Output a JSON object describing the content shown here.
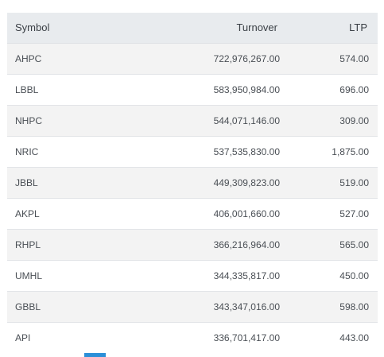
{
  "table": {
    "headers": {
      "symbol": "Symbol",
      "turnover": "Turnover",
      "ltp": "LTP"
    },
    "rows": [
      {
        "symbol": "AHPC",
        "turnover": "722,976,267.00",
        "ltp": "574.00"
      },
      {
        "symbol": "LBBL",
        "turnover": "583,950,984.00",
        "ltp": "696.00"
      },
      {
        "symbol": "NHPC",
        "turnover": "544,071,146.00",
        "ltp": "309.00"
      },
      {
        "symbol": "NRIC",
        "turnover": "537,535,830.00",
        "ltp": "1,875.00"
      },
      {
        "symbol": "JBBL",
        "turnover": "449,309,823.00",
        "ltp": "519.00"
      },
      {
        "symbol": "AKPL",
        "turnover": "406,001,660.00",
        "ltp": "527.00"
      },
      {
        "symbol": "RHPL",
        "turnover": "366,216,964.00",
        "ltp": "565.00"
      },
      {
        "symbol": "UMHL",
        "turnover": "344,335,817.00",
        "ltp": "450.00"
      },
      {
        "symbol": "GBBL",
        "turnover": "343,347,016.00",
        "ltp": "598.00"
      },
      {
        "symbol": "API",
        "turnover": "336,701,417.00",
        "ltp": "443.00"
      }
    ]
  },
  "colors": {
    "header_bg": "#e8ebee",
    "row_alt_bg": "#f3f3f3",
    "indicator": "#2b8fd8"
  }
}
